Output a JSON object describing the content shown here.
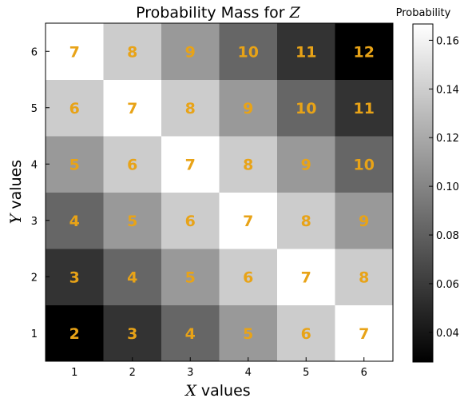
{
  "chart_data": {
    "type": "heatmap",
    "title_prefix": "Probability Mass for ",
    "title_var": "Z",
    "colorbar_title": "Probability",
    "xlabel_var": "X",
    "xlabel_suffix": " values",
    "ylabel_var": "Y",
    "ylabel_suffix": " values",
    "x_categories": [
      "1",
      "2",
      "3",
      "4",
      "5",
      "6"
    ],
    "y_categories": [
      "1",
      "2",
      "3",
      "4",
      "5",
      "6"
    ],
    "z_values": [
      [
        0.0278,
        0.0556,
        0.0833,
        0.1111,
        0.1389,
        0.1667
      ],
      [
        0.0556,
        0.0833,
        0.1111,
        0.1389,
        0.1667,
        0.1389
      ],
      [
        0.0833,
        0.1111,
        0.1389,
        0.1667,
        0.1389,
        0.1111
      ],
      [
        0.1111,
        0.1389,
        0.1667,
        0.1389,
        0.1111,
        0.0833
      ],
      [
        0.1389,
        0.1667,
        0.1389,
        0.1111,
        0.0833,
        0.0556
      ],
      [
        0.1667,
        0.1389,
        0.1111,
        0.0833,
        0.0556,
        0.0278
      ]
    ],
    "cell_labels": [
      [
        "2",
        "3",
        "4",
        "5",
        "6",
        "7"
      ],
      [
        "3",
        "4",
        "5",
        "6",
        "7",
        "8"
      ],
      [
        "4",
        "5",
        "6",
        "7",
        "8",
        "9"
      ],
      [
        "5",
        "6",
        "7",
        "8",
        "9",
        "10"
      ],
      [
        "6",
        "7",
        "8",
        "9",
        "10",
        "11"
      ],
      [
        "7",
        "8",
        "9",
        "10",
        "11",
        "12"
      ]
    ],
    "colorscale": "gray",
    "color_range": [
      0.0278,
      0.1667
    ],
    "colorbar_ticks": [
      "0.04",
      "0.06",
      "0.08",
      "0.10",
      "0.12",
      "0.14",
      "0.16"
    ],
    "colorbar_tick_values": [
      0.04,
      0.06,
      0.08,
      0.1,
      0.12,
      0.14,
      0.16
    ],
    "label_color": "#e8a317"
  }
}
